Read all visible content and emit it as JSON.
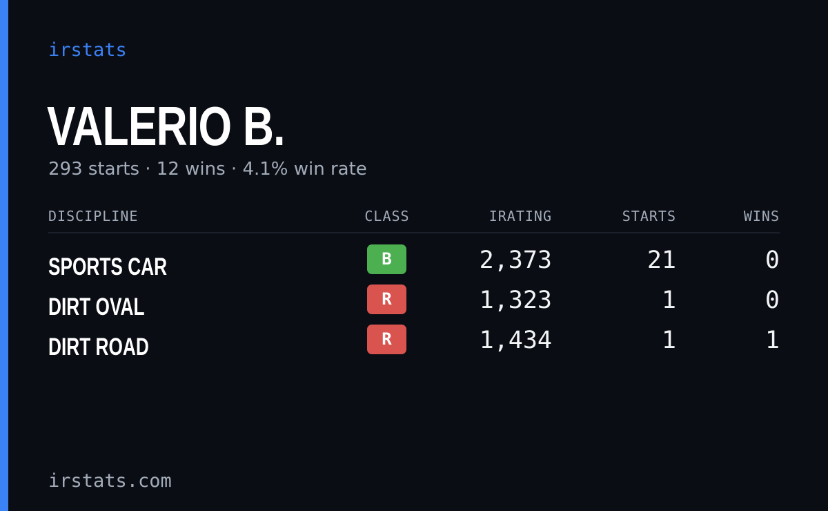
{
  "brand": "irstats",
  "driver": {
    "name": "VALERIO B.",
    "summary": "293 starts · 12 wins · 4.1% win rate"
  },
  "table": {
    "headers": {
      "discipline": "DISCIPLINE",
      "class": "CLASS",
      "irating": "IRATING",
      "starts": "STARTS",
      "wins": "WINS"
    },
    "rows": [
      {
        "discipline": "SPORTS CAR",
        "class": "B",
        "class_color": "#4caf50",
        "irating": "2,373",
        "starts": "21",
        "wins": "0"
      },
      {
        "discipline": "DIRT OVAL",
        "class": "R",
        "class_color": "#d9534f",
        "irating": "1,323",
        "starts": "1",
        "wins": "0"
      },
      {
        "discipline": "DIRT ROAD",
        "class": "R",
        "class_color": "#d9534f",
        "irating": "1,434",
        "starts": "1",
        "wins": "1"
      }
    ]
  },
  "footer": "irstats.com",
  "colors": {
    "accent": "#3b82f6",
    "background": "#0a0d14"
  }
}
